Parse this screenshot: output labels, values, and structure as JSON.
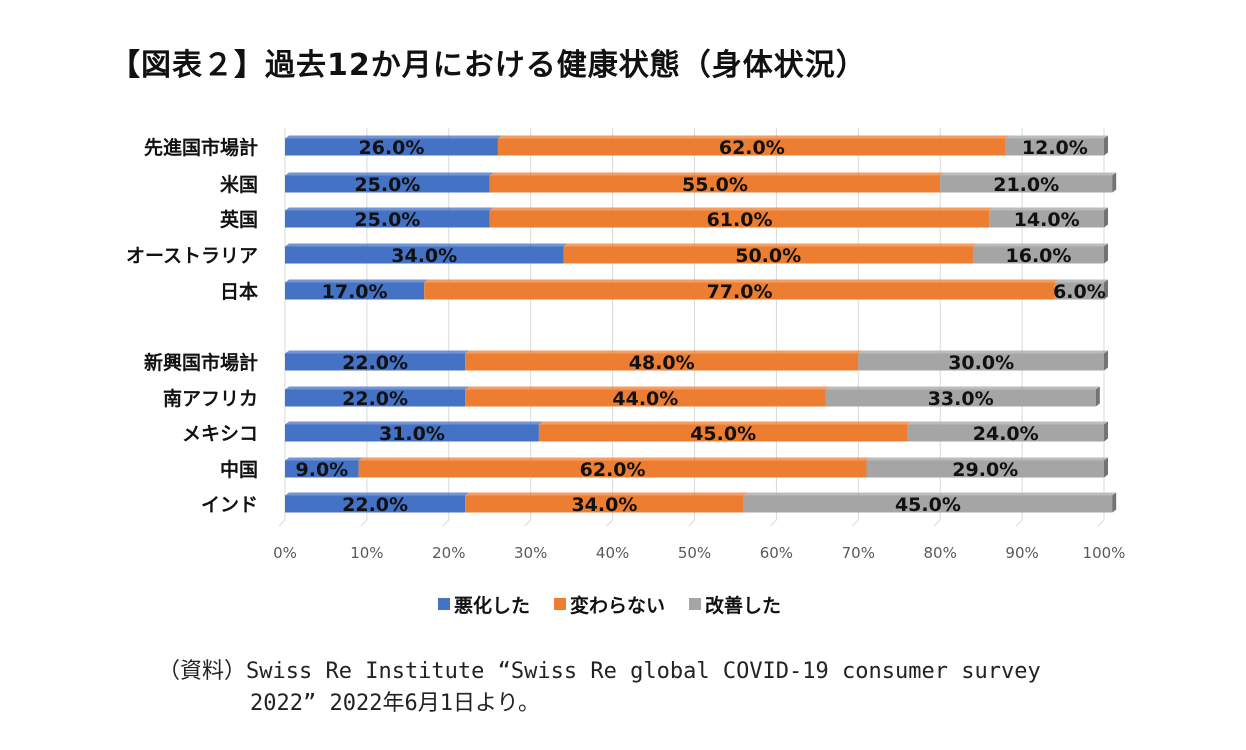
{
  "title": "【図表２】過去12か月における健康状態（身体状況）",
  "source": {
    "line1": "（資料）Swiss Re Institute “Swiss Re global COVID-19 consumer survey",
    "line2": "2022” 2022年6月1日より。"
  },
  "chart_data": {
    "type": "bar",
    "orientation": "horizontal",
    "stacked": true,
    "percent_stacked": true,
    "categories": [
      "先進国市場計",
      "米国",
      "英国",
      "オーストラリア",
      "日本",
      "新興国市場計",
      "南アフリカ",
      "メキシコ",
      "中国",
      "インド"
    ],
    "series": [
      {
        "name": "悪化した",
        "color": "#4472C4",
        "values": [
          26.0,
          25.0,
          25.0,
          34.0,
          17.0,
          22.0,
          22.0,
          31.0,
          9.0,
          22.0
        ],
        "labels": [
          "26.0%",
          "25.0%",
          "25.0%",
          "34.0%",
          "17.0%",
          "22.0%",
          "22.0%",
          "31.0%",
          "9.0%",
          "22.0%"
        ]
      },
      {
        "name": "変わらない",
        "color": "#ED7D31",
        "values": [
          62.0,
          55.0,
          61.0,
          50.0,
          77.0,
          48.0,
          44.0,
          45.0,
          62.0,
          34.0
        ],
        "labels": [
          "62.0%",
          "55.0%",
          "61.0%",
          "50.0%",
          "77.0%",
          "48.0%",
          "44.0%",
          "45.0%",
          "62.0%",
          "34.0%"
        ]
      },
      {
        "name": "改善した",
        "color": "#A5A5A5",
        "values": [
          12.0,
          21.0,
          14.0,
          16.0,
          6.0,
          30.0,
          33.0,
          24.0,
          29.0,
          45.0
        ],
        "labels": [
          "12.0%",
          "21.0%",
          "14.0%",
          "16.0%",
          "6.0%",
          "30.0%",
          "33.0%",
          "24.0%",
          "29.0%",
          "45.0%"
        ]
      }
    ],
    "x_ticks": [
      "0%",
      "10%",
      "20%",
      "30%",
      "40%",
      "50%",
      "60%",
      "70%",
      "80%",
      "90%",
      "100%"
    ],
    "xlim": [
      0,
      100
    ],
    "grid": true,
    "legend": "bottom"
  }
}
